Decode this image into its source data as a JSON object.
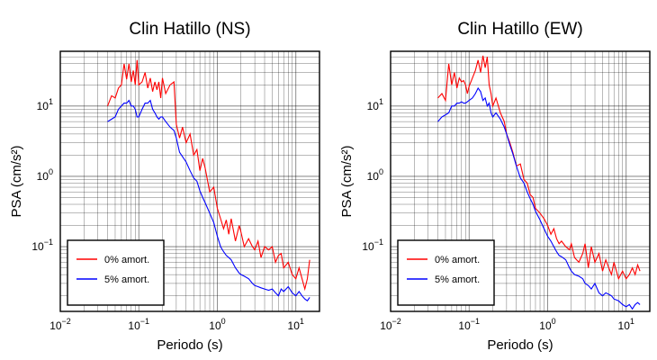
{
  "chart_data": [
    {
      "type": "line",
      "title": "Clin Hatillo (NS)",
      "xlabel": "Periodo (s)",
      "ylabel": "PSA (cm/s²)",
      "xscale": "log",
      "yscale": "log",
      "xlim": [
        0.01,
        20
      ],
      "ylim": [
        0.012,
        60
      ],
      "grid": true,
      "legend_position": "bottom-left",
      "xtick_labels": [
        {
          "base": "10",
          "exp": "−2",
          "value": 0.01
        },
        {
          "base": "10",
          "exp": "−1",
          "value": 0.1
        },
        {
          "base": "10",
          "exp": "0",
          "value": 1
        },
        {
          "base": "10",
          "exp": "1",
          "value": 10
        }
      ],
      "ytick_labels": [
        {
          "base": "10",
          "exp": "−1",
          "value": 0.1
        },
        {
          "base": "10",
          "exp": "0",
          "value": 1
        },
        {
          "base": "10",
          "exp": "1",
          "value": 10
        }
      ],
      "series": [
        {
          "name": "0% amort.",
          "color": "#ff0000",
          "x": [
            0.04,
            0.045,
            0.05,
            0.055,
            0.06,
            0.065,
            0.07,
            0.075,
            0.08,
            0.085,
            0.09,
            0.095,
            0.1,
            0.11,
            0.12,
            0.13,
            0.14,
            0.15,
            0.16,
            0.17,
            0.18,
            0.19,
            0.2,
            0.22,
            0.25,
            0.28,
            0.3,
            0.33,
            0.36,
            0.4,
            0.45,
            0.5,
            0.55,
            0.6,
            0.65,
            0.7,
            0.8,
            0.9,
            1.0,
            1.1,
            1.2,
            1.3,
            1.4,
            1.5,
            1.7,
            1.9,
            2.0,
            2.2,
            2.5,
            2.8,
            3.0,
            3.3,
            3.6,
            4.0,
            4.5,
            5.0,
            5.5,
            6.0,
            6.5,
            7.0,
            8.0,
            9.0,
            10.0,
            11.0,
            12.0,
            13.0,
            14.0,
            15.0
          ],
          "y": [
            10,
            14,
            13,
            18,
            20,
            40,
            24,
            40,
            22,
            32,
            20,
            45,
            20,
            22,
            30,
            18,
            25,
            16,
            22,
            17,
            22,
            13,
            25,
            15,
            20,
            22,
            5.5,
            3.5,
            5,
            3,
            4,
            2,
            2.4,
            1.2,
            1.8,
            1.3,
            0.6,
            0.7,
            0.35,
            0.25,
            0.18,
            0.24,
            0.15,
            0.25,
            0.12,
            0.2,
            0.16,
            0.1,
            0.13,
            0.1,
            0.09,
            0.12,
            0.07,
            0.1,
            0.09,
            0.1,
            0.06,
            0.075,
            0.08,
            0.05,
            0.06,
            0.04,
            0.035,
            0.05,
            0.035,
            0.025,
            0.035,
            0.065
          ]
        },
        {
          "name": "5% amort.",
          "color": "#0000ff",
          "x": [
            0.04,
            0.045,
            0.05,
            0.055,
            0.06,
            0.065,
            0.07,
            0.075,
            0.08,
            0.085,
            0.09,
            0.095,
            0.1,
            0.11,
            0.12,
            0.13,
            0.14,
            0.15,
            0.16,
            0.17,
            0.18,
            0.19,
            0.2,
            0.22,
            0.25,
            0.28,
            0.3,
            0.33,
            0.36,
            0.4,
            0.45,
            0.5,
            0.55,
            0.6,
            0.65,
            0.7,
            0.8,
            0.9,
            1.0,
            1.1,
            1.2,
            1.3,
            1.4,
            1.5,
            1.7,
            1.9,
            2.0,
            2.2,
            2.5,
            2.8,
            3.0,
            3.3,
            3.6,
            4.0,
            4.5,
            5.0,
            5.5,
            6.0,
            6.5,
            7.0,
            8.0,
            9.0,
            10.0,
            11.0,
            12.0,
            13.0,
            14.0,
            15.0
          ],
          "y": [
            6,
            6.5,
            7,
            9,
            10,
            11,
            11,
            12,
            10,
            10,
            9,
            7,
            7,
            9,
            11,
            11,
            12,
            9,
            8,
            7,
            6.5,
            7,
            7,
            6,
            5,
            4.5,
            3.5,
            2.2,
            1.9,
            1.6,
            1.2,
            0.95,
            0.85,
            0.62,
            0.5,
            0.42,
            0.3,
            0.22,
            0.14,
            0.1,
            0.085,
            0.075,
            0.07,
            0.065,
            0.05,
            0.042,
            0.04,
            0.038,
            0.035,
            0.03,
            0.028,
            0.027,
            0.026,
            0.025,
            0.024,
            0.025,
            0.022,
            0.02,
            0.025,
            0.023,
            0.027,
            0.022,
            0.02,
            0.023,
            0.02,
            0.018,
            0.017,
            0.019
          ]
        }
      ]
    },
    {
      "type": "line",
      "title": "Clin Hatillo (EW)",
      "xlabel": "Periodo (s)",
      "ylabel": "PSA (cm/s²)",
      "xscale": "log",
      "yscale": "log",
      "xlim": [
        0.01,
        20
      ],
      "ylim": [
        0.012,
        60
      ],
      "grid": true,
      "legend_position": "bottom-left",
      "xtick_labels": [
        {
          "base": "10",
          "exp": "−2",
          "value": 0.01
        },
        {
          "base": "10",
          "exp": "−1",
          "value": 0.1
        },
        {
          "base": "10",
          "exp": "0",
          "value": 1
        },
        {
          "base": "10",
          "exp": "1",
          "value": 10
        }
      ],
      "ytick_labels": [
        {
          "base": "10",
          "exp": "−1",
          "value": 0.1
        },
        {
          "base": "10",
          "exp": "0",
          "value": 1
        },
        {
          "base": "10",
          "exp": "1",
          "value": 10
        }
      ],
      "series": [
        {
          "name": "0% amort.",
          "color": "#ff0000",
          "x": [
            0.04,
            0.045,
            0.05,
            0.055,
            0.06,
            0.065,
            0.07,
            0.075,
            0.08,
            0.085,
            0.09,
            0.095,
            0.1,
            0.11,
            0.12,
            0.13,
            0.14,
            0.15,
            0.16,
            0.17,
            0.18,
            0.19,
            0.2,
            0.22,
            0.25,
            0.28,
            0.3,
            0.33,
            0.36,
            0.4,
            0.45,
            0.5,
            0.55,
            0.6,
            0.65,
            0.7,
            0.8,
            0.9,
            1.0,
            1.1,
            1.2,
            1.3,
            1.4,
            1.5,
            1.7,
            1.9,
            2.0,
            2.2,
            2.5,
            2.8,
            3.0,
            3.3,
            3.6,
            4.0,
            4.5,
            5.0,
            5.5,
            6.0,
            6.5,
            7.0,
            8.0,
            9.0,
            10.0,
            11.0,
            12.0,
            13.0,
            14.0,
            15.0
          ],
          "y": [
            13,
            15,
            12,
            40,
            20,
            30,
            18,
            25,
            22,
            23,
            20,
            15,
            19,
            25,
            32,
            45,
            30,
            52,
            35,
            50,
            20,
            15,
            10,
            13,
            8,
            6,
            4,
            3,
            2.2,
            1.4,
            1.5,
            0.9,
            0.8,
            0.55,
            0.5,
            0.35,
            0.3,
            0.25,
            0.2,
            0.15,
            0.18,
            0.13,
            0.11,
            0.12,
            0.1,
            0.09,
            0.11,
            0.07,
            0.06,
            0.08,
            0.11,
            0.05,
            0.1,
            0.06,
            0.08,
            0.045,
            0.065,
            0.05,
            0.04,
            0.06,
            0.035,
            0.045,
            0.035,
            0.04,
            0.05,
            0.04,
            0.055,
            0.045
          ]
        },
        {
          "name": "5% amort.",
          "color": "#0000ff",
          "x": [
            0.04,
            0.045,
            0.05,
            0.055,
            0.06,
            0.065,
            0.07,
            0.075,
            0.08,
            0.085,
            0.09,
            0.095,
            0.1,
            0.11,
            0.12,
            0.13,
            0.14,
            0.15,
            0.16,
            0.17,
            0.18,
            0.19,
            0.2,
            0.22,
            0.25,
            0.28,
            0.3,
            0.33,
            0.36,
            0.4,
            0.45,
            0.5,
            0.55,
            0.6,
            0.65,
            0.7,
            0.8,
            0.9,
            1.0,
            1.1,
            1.2,
            1.3,
            1.4,
            1.5,
            1.7,
            1.9,
            2.0,
            2.2,
            2.5,
            2.8,
            3.0,
            3.3,
            3.6,
            4.0,
            4.5,
            5.0,
            5.5,
            6.0,
            6.5,
            7.0,
            8.0,
            9.0,
            10.0,
            11.0,
            12.0,
            13.0,
            14.0,
            15.0
          ],
          "y": [
            6,
            7,
            7.5,
            8,
            10,
            10,
            11,
            11,
            11.5,
            11,
            11,
            11.5,
            12,
            13,
            15,
            18,
            16,
            12,
            13,
            10,
            11,
            8,
            7,
            8,
            6.5,
            5,
            4,
            2.8,
            2.1,
            1.4,
            0.95,
            0.8,
            0.6,
            0.48,
            0.4,
            0.32,
            0.24,
            0.18,
            0.14,
            0.12,
            0.1,
            0.085,
            0.075,
            0.072,
            0.065,
            0.05,
            0.045,
            0.04,
            0.038,
            0.035,
            0.03,
            0.028,
            0.025,
            0.03,
            0.022,
            0.02,
            0.022,
            0.021,
            0.02,
            0.018,
            0.017,
            0.015,
            0.014,
            0.015,
            0.013,
            0.015,
            0.016,
            0.015
          ]
        }
      ]
    }
  ]
}
